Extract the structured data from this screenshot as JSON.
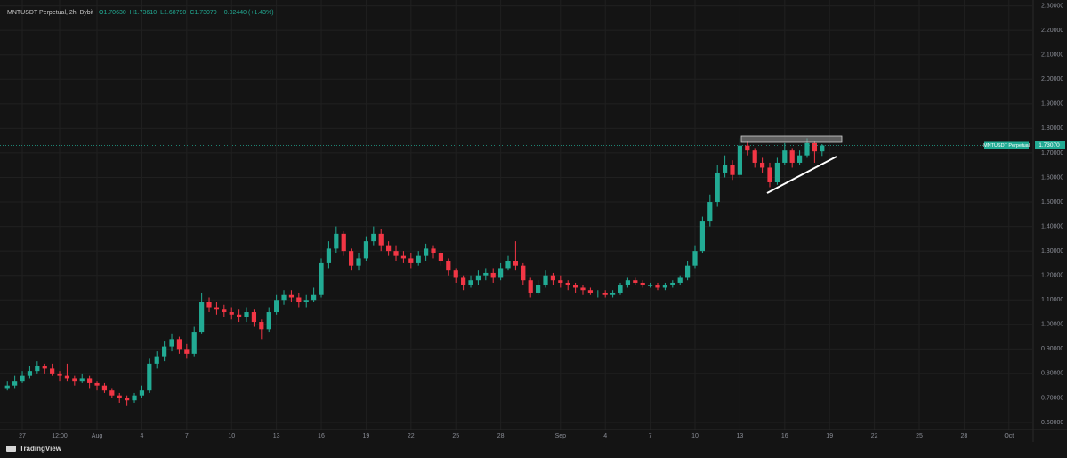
{
  "chart_data": {
    "type": "candlestick",
    "title": "MNTUSDT Perpetual, 2h, Bybit",
    "header_values": [
      "O1.70630",
      "H1.73610",
      "L1.68790",
      "C1.73070"
    ],
    "change": "+0.02440 (+1.43%)",
    "series_label": "MNTUSDT Perpetual",
    "last_price_label": "1.73070",
    "brand": "TradingView",
    "up_color": "#22ab94",
    "down_color": "#f23645",
    "grid": true,
    "x": [
      -1,
      -0.5,
      0,
      0.5,
      1,
      1.5,
      2,
      2.5,
      3,
      3.5,
      4,
      4.5,
      5,
      5.5,
      6,
      6.5,
      7,
      7.5,
      8,
      8.5,
      9,
      9.5,
      10,
      10.5,
      11,
      11.5,
      12,
      12.5,
      13,
      13.5,
      14,
      14.5,
      15,
      15.5,
      16,
      16.5,
      17,
      17.5,
      18,
      18.5,
      19,
      19.5,
      20,
      20.5,
      21,
      21.5,
      22,
      22.5,
      23,
      23.5,
      24,
      24.5,
      25,
      25.5,
      26,
      26.5,
      27,
      27.5,
      28,
      28.5,
      29,
      29.5,
      30,
      30.5,
      31,
      31.5,
      32,
      32.5,
      33,
      33.5,
      34,
      34.5,
      35,
      35.5,
      36,
      36.5,
      37,
      37.5,
      38,
      38.5,
      39,
      39.5,
      40,
      40.5,
      41,
      41.5,
      42,
      42.5,
      43,
      43.5,
      44,
      44.5,
      45,
      45.5,
      46,
      46.5,
      47,
      47.5,
      48,
      48.5,
      49,
      49.5,
      50,
      50.5,
      51,
      51.5,
      52,
      52.5,
      53,
      53.5
    ],
    "open": [
      0.74,
      0.75,
      0.77,
      0.79,
      0.81,
      0.83,
      0.82,
      0.8,
      0.79,
      0.78,
      0.77,
      0.78,
      0.76,
      0.75,
      0.73,
      0.71,
      0.7,
      0.69,
      0.71,
      0.73,
      0.84,
      0.87,
      0.91,
      0.94,
      0.9,
      0.88,
      0.97,
      1.09,
      1.07,
      1.06,
      1.05,
      1.04,
      1.03,
      1.05,
      1.01,
      0.98,
      1.05,
      1.1,
      1.12,
      1.11,
      1.09,
      1.1,
      1.12,
      1.25,
      1.31,
      1.37,
      1.3,
      1.24,
      1.27,
      1.34,
      1.37,
      1.32,
      1.3,
      1.28,
      1.27,
      1.25,
      1.28,
      1.31,
      1.29,
      1.26,
      1.22,
      1.19,
      1.16,
      1.18,
      1.2,
      1.21,
      1.19,
      1.23,
      1.26,
      1.24,
      1.18,
      1.13,
      1.16,
      1.2,
      1.18,
      1.17,
      1.16,
      1.15,
      1.14,
      1.13,
      1.13,
      1.12,
      1.13,
      1.16,
      1.18,
      1.17,
      1.16,
      1.16,
      1.15,
      1.16,
      1.17,
      1.19,
      1.24,
      1.3,
      1.42,
      1.5,
      1.62,
      1.65,
      1.61,
      1.73,
      1.71,
      1.66,
      1.64,
      1.58,
      1.66,
      1.71,
      1.66,
      1.69,
      1.74,
      1.7063
    ],
    "high": [
      0.77,
      0.79,
      0.81,
      0.83,
      0.85,
      0.84,
      0.84,
      0.81,
      0.84,
      0.79,
      0.8,
      0.79,
      0.77,
      0.76,
      0.74,
      0.72,
      0.71,
      0.72,
      0.75,
      0.86,
      0.89,
      0.93,
      0.96,
      0.95,
      0.92,
      0.99,
      1.13,
      1.11,
      1.09,
      1.08,
      1.07,
      1.06,
      1.07,
      1.06,
      1.02,
      1.07,
      1.12,
      1.14,
      1.14,
      1.13,
      1.12,
      1.15,
      1.27,
      1.34,
      1.4,
      1.38,
      1.31,
      1.29,
      1.36,
      1.4,
      1.39,
      1.34,
      1.32,
      1.3,
      1.29,
      1.3,
      1.33,
      1.32,
      1.3,
      1.27,
      1.23,
      1.2,
      1.2,
      1.22,
      1.23,
      1.23,
      1.25,
      1.28,
      1.34,
      1.25,
      1.19,
      1.18,
      1.22,
      1.21,
      1.2,
      1.18,
      1.17,
      1.16,
      1.15,
      1.14,
      1.14,
      1.14,
      1.17,
      1.19,
      1.19,
      1.18,
      1.17,
      1.17,
      1.17,
      1.18,
      1.2,
      1.26,
      1.32,
      1.44,
      1.53,
      1.65,
      1.69,
      1.67,
      1.76,
      1.75,
      1.72,
      1.68,
      1.66,
      1.68,
      1.74,
      1.72,
      1.71,
      1.76,
      1.75,
      1.7361
    ],
    "low": [
      0.73,
      0.74,
      0.76,
      0.78,
      0.8,
      0.8,
      0.79,
      0.77,
      0.77,
      0.75,
      0.76,
      0.74,
      0.73,
      0.72,
      0.7,
      0.68,
      0.67,
      0.68,
      0.7,
      0.72,
      0.82,
      0.85,
      0.89,
      0.88,
      0.86,
      0.87,
      0.96,
      1.05,
      1.04,
      1.03,
      1.02,
      1.01,
      1.01,
      0.99,
      0.94,
      0.97,
      1.04,
      1.08,
      1.09,
      1.07,
      1.07,
      1.09,
      1.11,
      1.23,
      1.29,
      1.28,
      1.22,
      1.22,
      1.26,
      1.32,
      1.3,
      1.28,
      1.26,
      1.25,
      1.23,
      1.24,
      1.26,
      1.27,
      1.24,
      1.2,
      1.17,
      1.14,
      1.15,
      1.16,
      1.18,
      1.17,
      1.18,
      1.22,
      1.22,
      1.16,
      1.11,
      1.12,
      1.15,
      1.16,
      1.15,
      1.14,
      1.13,
      1.12,
      1.12,
      1.11,
      1.11,
      1.11,
      1.12,
      1.15,
      1.16,
      1.15,
      1.15,
      1.14,
      1.14,
      1.15,
      1.16,
      1.18,
      1.23,
      1.29,
      1.4,
      1.48,
      1.6,
      1.59,
      1.6,
      1.69,
      1.64,
      1.62,
      1.56,
      1.57,
      1.65,
      1.64,
      1.65,
      1.68,
      1.66,
      1.6879
    ],
    "close": [
      0.75,
      0.77,
      0.79,
      0.81,
      0.83,
      0.82,
      0.8,
      0.79,
      0.78,
      0.77,
      0.78,
      0.76,
      0.75,
      0.73,
      0.71,
      0.7,
      0.69,
      0.71,
      0.73,
      0.84,
      0.87,
      0.91,
      0.94,
      0.9,
      0.88,
      0.97,
      1.09,
      1.07,
      1.06,
      1.05,
      1.04,
      1.03,
      1.05,
      1.01,
      0.98,
      1.05,
      1.1,
      1.12,
      1.11,
      1.09,
      1.1,
      1.12,
      1.25,
      1.31,
      1.37,
      1.3,
      1.24,
      1.27,
      1.34,
      1.37,
      1.32,
      1.3,
      1.28,
      1.27,
      1.25,
      1.28,
      1.31,
      1.29,
      1.26,
      1.22,
      1.19,
      1.16,
      1.18,
      1.2,
      1.21,
      1.19,
      1.23,
      1.26,
      1.24,
      1.18,
      1.13,
      1.16,
      1.2,
      1.18,
      1.17,
      1.16,
      1.15,
      1.14,
      1.13,
      1.13,
      1.12,
      1.13,
      1.16,
      1.18,
      1.17,
      1.16,
      1.16,
      1.15,
      1.16,
      1.17,
      1.19,
      1.24,
      1.3,
      1.42,
      1.5,
      1.62,
      1.65,
      1.61,
      1.73,
      1.71,
      1.66,
      1.64,
      1.58,
      1.66,
      1.71,
      1.66,
      1.69,
      1.74,
      1.7063,
      1.7307
    ],
    "xlim": [
      -1.49,
      67.56
    ],
    "xticks": [
      {
        "value": 0,
        "label": "27"
      },
      {
        "value": 2.5,
        "label": "12:00"
      },
      {
        "value": 5,
        "label": "Aug"
      },
      {
        "value": 8,
        "label": "4"
      },
      {
        "value": 11,
        "label": "7"
      },
      {
        "value": 14,
        "label": "10"
      },
      {
        "value": 17,
        "label": "13"
      },
      {
        "value": 20,
        "label": "16"
      },
      {
        "value": 23,
        "label": "19"
      },
      {
        "value": 26,
        "label": "22"
      },
      {
        "value": 29,
        "label": "25"
      },
      {
        "value": 32,
        "label": "28"
      },
      {
        "value": 36,
        "label": "Sep"
      },
      {
        "value": 39,
        "label": "4"
      },
      {
        "value": 42,
        "label": "7"
      },
      {
        "value": 45,
        "label": "10"
      },
      {
        "value": 48,
        "label": "13"
      },
      {
        "value": 51,
        "label": "16"
      },
      {
        "value": 54,
        "label": "19"
      },
      {
        "value": 57,
        "label": "22"
      },
      {
        "value": 60,
        "label": "25"
      },
      {
        "value": 63,
        "label": "28"
      },
      {
        "value": 66,
        "label": "Oct"
      }
    ],
    "ylim": [
      0.571,
      2.324
    ],
    "yticks": [
      {
        "value": 0.6,
        "label": "0.60000"
      },
      {
        "value": 0.7,
        "label": "0.70000"
      },
      {
        "value": 0.8,
        "label": "0.80000"
      },
      {
        "value": 0.9,
        "label": "0.90000"
      },
      {
        "value": 1.0,
        "label": "1.00000"
      },
      {
        "value": 1.1,
        "label": "1.10000"
      },
      {
        "value": 1.2,
        "label": "1.20000"
      },
      {
        "value": 1.3,
        "label": "1.30000"
      },
      {
        "value": 1.4,
        "label": "1.40000"
      },
      {
        "value": 1.5,
        "label": "1.50000"
      },
      {
        "value": 1.6,
        "label": "1.60000"
      },
      {
        "value": 1.7,
        "label": "1.70000"
      },
      {
        "value": 1.8,
        "label": "1.80000"
      },
      {
        "value": 1.9,
        "label": "1.90000"
      },
      {
        "value": 2.0,
        "label": "2.00000"
      },
      {
        "value": 2.1,
        "label": "2.10000"
      },
      {
        "value": 2.2,
        "label": "2.20000"
      },
      {
        "value": 2.3,
        "label": "2.30000"
      }
    ]
  }
}
